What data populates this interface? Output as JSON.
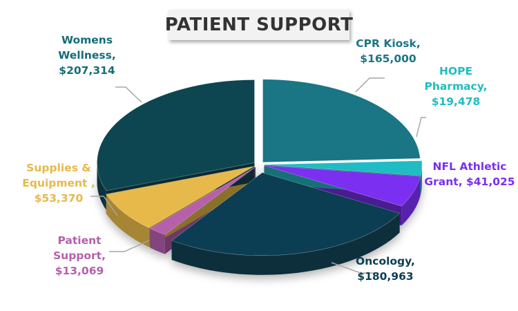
{
  "chart_data": {
    "type": "pie",
    "title": "PATIENT SUPPORT",
    "three_d": true,
    "legend": "none",
    "data_label_format": "category, value",
    "slices": [
      {
        "name": "CPR Kiosk",
        "value": 165000,
        "value_label": "$165,000",
        "label_lines": [
          "CPR Kiosk,",
          "$165,000"
        ],
        "color": "#1a7585"
      },
      {
        "name": "HOPE Pharmacy",
        "value": 19478,
        "value_label": "$19,478",
        "label_lines": [
          "HOPE",
          "Pharmacy,",
          "$19,478"
        ],
        "color": "#1fbcc4"
      },
      {
        "name": "NFL Athletic Grant",
        "value": 41025,
        "value_label": "$41,025",
        "label_lines": [
          "NFL Athletic",
          "Grant,  $41,025"
        ],
        "color": "#7b2ff0"
      },
      {
        "name": "Oncology",
        "value": 180963,
        "value_label": "$180,963",
        "label_lines": [
          "Oncology,",
          "$180,963"
        ],
        "color": "#0b3e52"
      },
      {
        "name": "Patient Support",
        "value": 13069,
        "value_label": "$13,069",
        "label_lines": [
          "Patient",
          "Support,",
          "$13,069"
        ],
        "color": "#b65fad"
      },
      {
        "name": "Supplies & Equipment",
        "value": 53370,
        "value_label": "$53,370",
        "label_lines": [
          "Supplies &",
          "Equipment ,",
          "$53,370"
        ],
        "color": "#e6b94a"
      },
      {
        "name": "Womens Wellness",
        "value": 207314,
        "value_label": "$207,314",
        "label_lines": [
          "Womens",
          "Wellness,",
          "$207,314"
        ],
        "color": "#0d4650"
      }
    ]
  }
}
